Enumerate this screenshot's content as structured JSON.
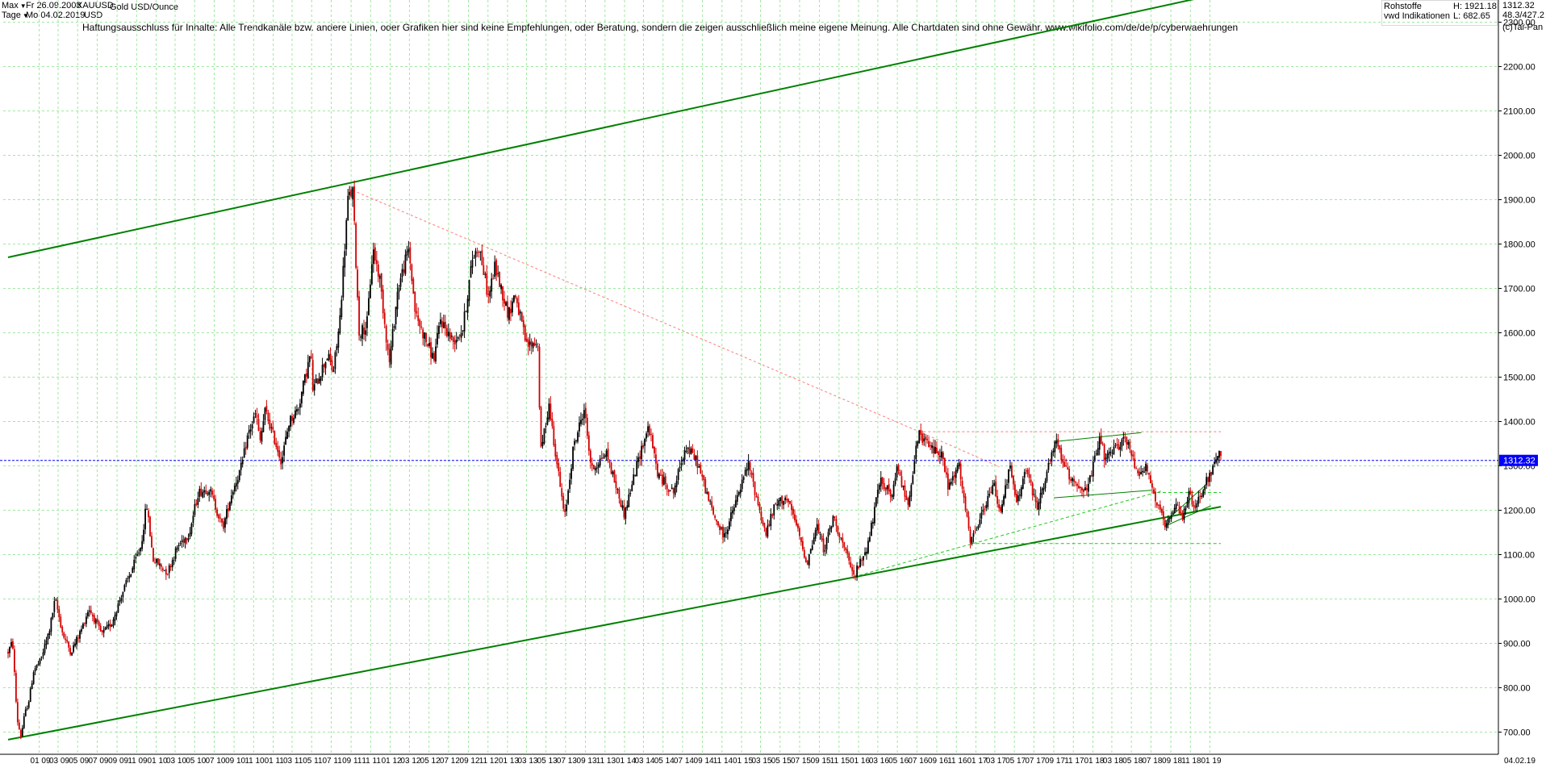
{
  "header": {
    "range_label": "Max",
    "interval_label": "Tage",
    "start_date": "Fr 26.09.2008",
    "end_date": "Mo 04.02.2019",
    "symbol": "XAUUSD",
    "currency": "USD",
    "instrument_name": "Gold USD/Ounce"
  },
  "info_box": {
    "category": "Rohstoffe",
    "source": "vwd Indikationen",
    "high_label": "H: 1921.18",
    "low_label": "L: 682.65"
  },
  "right_info": {
    "last": "1312.32",
    "scale": "48.3/427.2",
    "copyright": "(c)Tai-Pan"
  },
  "disclaimer": "Haftungsausschluss für Inhalte: Alle Trendkanäle bzw. andere Linien, oder Grafiken hier sind keine Empfehlungen, oder Beratung, sondern die zeigen ausschließlich meine eigene Meinung. Alle Chartdaten sind ohne Gewähr.  www.wikifolio.com/de/de/p/cyberwaehrungen",
  "colors": {
    "up_candle": "#000000",
    "down_candle": "#d40000",
    "grid": "#9ee89e",
    "trend_green": "#008000",
    "helper_green": "#1fc81f",
    "red_dotted": "#ff7a7a",
    "current_price_line": "#0000ff",
    "price_tag_bg": "#0000ff",
    "price_tag_text": "#ffffff"
  },
  "chart_data": {
    "type": "line",
    "title": "Gold USD/Ounce",
    "xlabel": "",
    "ylabel": "USD",
    "grid": true,
    "ylim": [
      650,
      2350
    ],
    "y_ticks": [
      "700.00",
      "800.00",
      "900.00",
      "1000.00",
      "1100.00",
      "1200.00",
      "1300.00",
      "1400.00",
      "1500.00",
      "1600.00",
      "1700.00",
      "1800.00",
      "1900.00",
      "2000.00",
      "2100.00",
      "2200.00",
      "2300.00"
    ],
    "x_tick_labels": [
      "01 09",
      "03 09",
      "05 09",
      "07 09",
      "09 09",
      "11 09",
      "01 10",
      "03 10",
      "05 10",
      "07 10",
      "09 10",
      "11 10",
      "01 11",
      "03 11",
      "05 11",
      "07 11",
      "09 11",
      "11 11",
      "01 12",
      "03 12",
      "05 12",
      "07 12",
      "09 12",
      "11 12",
      "01 13",
      "03 13",
      "05 13",
      "07 13",
      "09 13",
      "11 13",
      "01 14",
      "03 14",
      "05 14",
      "07 14",
      "09 14",
      "11 14",
      "01 15",
      "03 15",
      "05 15",
      "07 15",
      "09 15",
      "11 15",
      "01 16",
      "03 16",
      "05 16",
      "07 16",
      "09 16",
      "11 16",
      "01 17",
      "03 17",
      "05 17",
      "07 17",
      "09 17",
      "11 17",
      "01 18",
      "03 18",
      "05 18",
      "07 18",
      "09 18",
      "11 18",
      "01 19"
    ],
    "x_end_label": "04.02.19",
    "current_price": 1312.32,
    "current_price_label": "1312.32",
    "high": 1921.18,
    "low": 682.65,
    "series": [
      {
        "values": [
          [
            "2008-09-26",
            880
          ],
          [
            "2008-10-10",
            905
          ],
          [
            "2008-10-24",
            730
          ],
          [
            "2008-11-05",
            690
          ],
          [
            "2008-11-17",
            740
          ],
          [
            "2008-12-01",
            775
          ],
          [
            "2008-12-15",
            840
          ],
          [
            "2009-01-05",
            860
          ],
          [
            "2009-02-02",
            930
          ],
          [
            "2009-02-20",
            1000
          ],
          [
            "2009-03-16",
            920
          ],
          [
            "2009-04-10",
            880
          ],
          [
            "2009-05-15",
            935
          ],
          [
            "2009-06-05",
            980
          ],
          [
            "2009-07-15",
            920
          ],
          [
            "2009-08-15",
            945
          ],
          [
            "2009-09-15",
            1010
          ],
          [
            "2009-10-14",
            1060
          ],
          [
            "2009-11-15",
            1120
          ],
          [
            "2009-12-02",
            1215
          ],
          [
            "2009-12-22",
            1090
          ],
          [
            "2010-02-05",
            1060
          ],
          [
            "2010-03-10",
            1120
          ],
          [
            "2010-04-15",
            1150
          ],
          [
            "2010-05-12",
            1240
          ],
          [
            "2010-06-15",
            1250
          ],
          [
            "2010-07-28",
            1160
          ],
          [
            "2010-08-25",
            1240
          ],
          [
            "2010-09-25",
            1300
          ],
          [
            "2010-10-14",
            1370
          ],
          [
            "2010-11-09",
            1420
          ],
          [
            "2010-11-20",
            1350
          ],
          [
            "2010-12-07",
            1425
          ],
          [
            "2011-01-27",
            1310
          ],
          [
            "2011-02-20",
            1400
          ],
          [
            "2011-03-20",
            1430
          ],
          [
            "2011-04-28",
            1555
          ],
          [
            "2011-05-05",
            1470
          ],
          [
            "2011-06-20",
            1550
          ],
          [
            "2011-07-07",
            1510
          ],
          [
            "2011-07-27",
            1620
          ],
          [
            "2011-08-22",
            1900
          ],
          [
            "2011-09-06",
            1921
          ],
          [
            "2011-09-26",
            1600
          ],
          [
            "2011-10-20",
            1615
          ],
          [
            "2011-11-08",
            1790
          ],
          [
            "2011-11-30",
            1720
          ],
          [
            "2011-12-29",
            1530
          ],
          [
            "2012-01-25",
            1700
          ],
          [
            "2012-02-28",
            1790
          ],
          [
            "2012-03-20",
            1640
          ],
          [
            "2012-05-16",
            1540
          ],
          [
            "2012-06-06",
            1630
          ],
          [
            "2012-07-15",
            1580
          ],
          [
            "2012-08-15",
            1610
          ],
          [
            "2012-09-14",
            1770
          ],
          [
            "2012-10-04",
            1795
          ],
          [
            "2012-11-02",
            1680
          ],
          [
            "2012-11-23",
            1750
          ],
          [
            "2013-01-04",
            1640
          ],
          [
            "2013-01-24",
            1690
          ],
          [
            "2013-03-01",
            1570
          ],
          [
            "2013-04-05",
            1580
          ],
          [
            "2013-04-15",
            1330
          ],
          [
            "2013-05-10",
            1440
          ],
          [
            "2013-06-28",
            1180
          ],
          [
            "2013-07-25",
            1340
          ],
          [
            "2013-08-28",
            1430
          ],
          [
            "2013-09-20",
            1290
          ],
          [
            "2013-11-05",
            1330
          ],
          [
            "2013-12-31",
            1190
          ],
          [
            "2014-02-15",
            1320
          ],
          [
            "2014-03-17",
            1390
          ],
          [
            "2014-04-15",
            1280
          ],
          [
            "2014-06-02",
            1240
          ],
          [
            "2014-07-10",
            1345
          ],
          [
            "2014-08-15",
            1310
          ],
          [
            "2014-10-05",
            1190
          ],
          [
            "2014-11-07",
            1140
          ],
          [
            "2014-12-15",
            1220
          ],
          [
            "2015-01-22",
            1305
          ],
          [
            "2015-03-17",
            1145
          ],
          [
            "2015-04-15",
            1210
          ],
          [
            "2015-05-18",
            1230
          ],
          [
            "2015-06-15",
            1180
          ],
          [
            "2015-07-24",
            1080
          ],
          [
            "2015-08-24",
            1165
          ],
          [
            "2015-09-15",
            1110
          ],
          [
            "2015-10-15",
            1185
          ],
          [
            "2015-12-17",
            1050
          ],
          [
            "2016-01-29",
            1120
          ],
          [
            "2016-03-10",
            1270
          ],
          [
            "2016-04-15",
            1230
          ],
          [
            "2016-05-02",
            1300
          ],
          [
            "2016-06-01",
            1210
          ],
          [
            "2016-07-06",
            1370
          ],
          [
            "2016-08-15",
            1340
          ],
          [
            "2016-09-15",
            1330
          ],
          [
            "2016-10-07",
            1250
          ],
          [
            "2016-11-09",
            1300
          ],
          [
            "2016-12-15",
            1125
          ],
          [
            "2017-02-27",
            1260
          ],
          [
            "2017-03-15",
            1195
          ],
          [
            "2017-04-17",
            1295
          ],
          [
            "2017-05-09",
            1215
          ],
          [
            "2017-06-06",
            1295
          ],
          [
            "2017-07-10",
            1205
          ],
          [
            "2017-09-08",
            1355
          ],
          [
            "2017-10-15",
            1280
          ],
          [
            "2017-12-12",
            1240
          ],
          [
            "2018-01-25",
            1365
          ],
          [
            "2018-02-08",
            1310
          ],
          [
            "2018-04-11",
            1365
          ],
          [
            "2018-05-21",
            1285
          ],
          [
            "2018-06-15",
            1300
          ],
          [
            "2018-07-19",
            1215
          ],
          [
            "2018-08-16",
            1160
          ],
          [
            "2018-09-20",
            1210
          ],
          [
            "2018-10-09",
            1185
          ],
          [
            "2018-10-26",
            1240
          ],
          [
            "2018-11-13",
            1200
          ],
          [
            "2018-12-10",
            1250
          ],
          [
            "2019-01-04",
            1285
          ],
          [
            "2019-01-31",
            1325
          ],
          [
            "2019-02-04",
            1312.32
          ]
        ]
      }
    ]
  }
}
